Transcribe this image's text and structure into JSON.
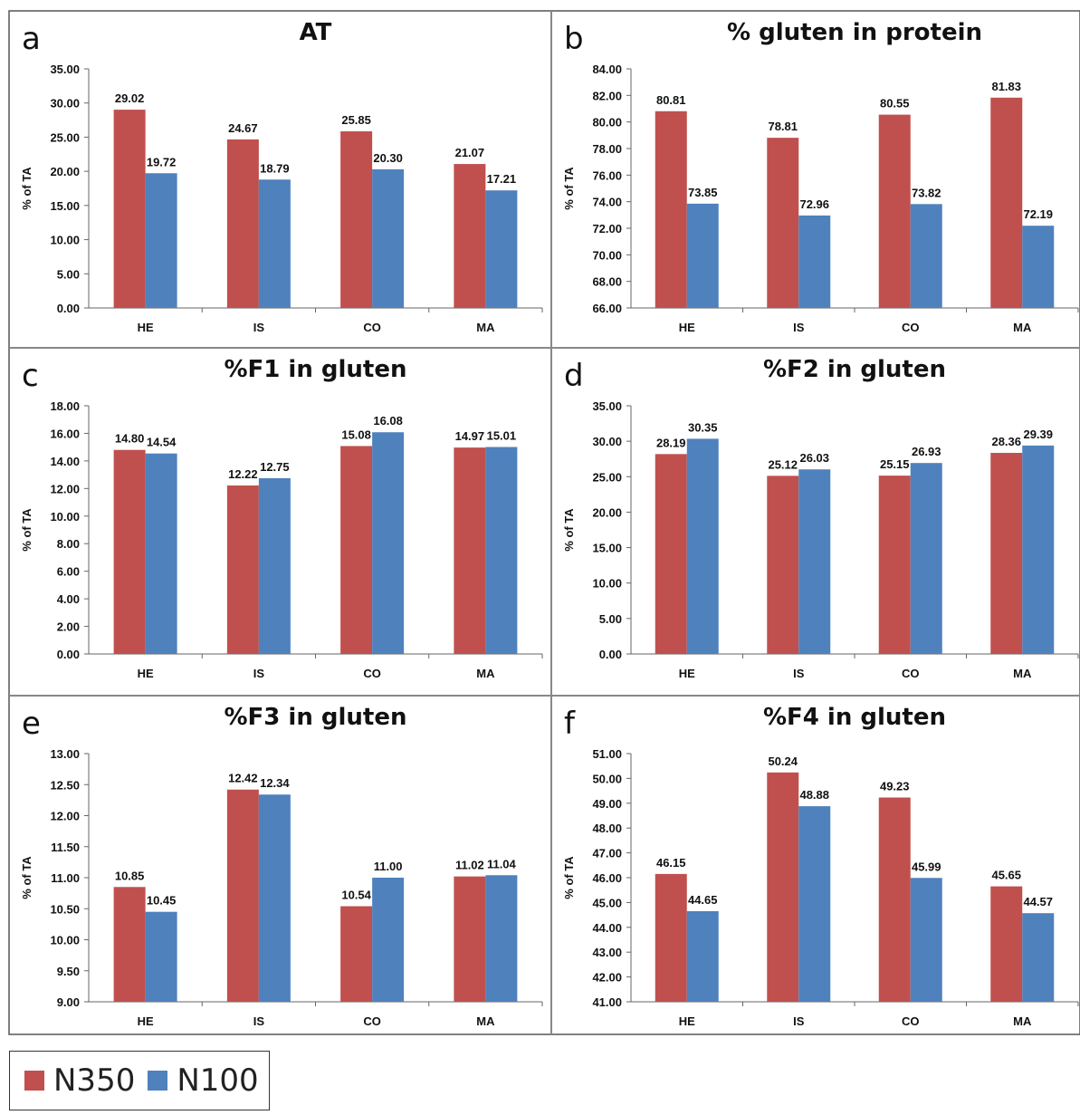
{
  "series_names": [
    "N350",
    "N100"
  ],
  "colors": {
    "N350": "#c0504d",
    "N100": "#4f81bd"
  },
  "chart_data": [
    {
      "type": "bar",
      "panel_letter": "a",
      "title": "AT",
      "ylabel": "% of TA",
      "categories": [
        "HE",
        "IS",
        "CO",
        "MA"
      ],
      "ylim": [
        0,
        35
      ],
      "ytick_step": 5,
      "series": [
        {
          "name": "N350",
          "values": [
            29.02,
            24.67,
            25.85,
            21.07
          ]
        },
        {
          "name": "N100",
          "values": [
            19.72,
            18.79,
            20.3,
            17.21
          ]
        }
      ]
    },
    {
      "type": "bar",
      "panel_letter": "b",
      "title": "% gluten in protein",
      "ylabel": "% of TA",
      "categories": [
        "HE",
        "IS",
        "CO",
        "MA"
      ],
      "ylim": [
        66,
        84
      ],
      "ytick_step": 2,
      "series": [
        {
          "name": "N350",
          "values": [
            80.81,
            78.81,
            80.55,
            81.83
          ]
        },
        {
          "name": "N100",
          "values": [
            73.85,
            72.96,
            73.82,
            72.19
          ]
        }
      ]
    },
    {
      "type": "bar",
      "panel_letter": "c",
      "title": "%F1 in gluten",
      "ylabel": "% of TA",
      "categories": [
        "HE",
        "IS",
        "CO",
        "MA"
      ],
      "ylim": [
        0,
        18
      ],
      "ytick_step": 2,
      "series": [
        {
          "name": "N350",
          "values": [
            14.8,
            12.22,
            15.08,
            14.97
          ]
        },
        {
          "name": "N100",
          "values": [
            14.54,
            12.75,
            16.08,
            15.01
          ]
        }
      ]
    },
    {
      "type": "bar",
      "panel_letter": "d",
      "title": "%F2 in gluten",
      "ylabel": "% of TA",
      "categories": [
        "HE",
        "IS",
        "CO",
        "MA"
      ],
      "ylim": [
        0,
        35
      ],
      "ytick_step": 5,
      "series": [
        {
          "name": "N350",
          "values": [
            28.19,
            25.12,
            25.15,
            28.36
          ]
        },
        {
          "name": "N100",
          "values": [
            30.35,
            26.03,
            26.93,
            29.39
          ]
        }
      ]
    },
    {
      "type": "bar",
      "panel_letter": "e",
      "title": "%F3 in gluten",
      "ylabel": "% of TA",
      "categories": [
        "HE",
        "IS",
        "CO",
        "MA"
      ],
      "ylim": [
        9,
        13
      ],
      "ytick_step": 0.5,
      "series": [
        {
          "name": "N350",
          "values": [
            10.85,
            12.42,
            10.54,
            11.02
          ]
        },
        {
          "name": "N100",
          "values": [
            10.45,
            12.34,
            11.0,
            11.04
          ]
        }
      ]
    },
    {
      "type": "bar",
      "panel_letter": "f",
      "title": "%F4 in gluten",
      "ylabel": "% of TA",
      "categories": [
        "HE",
        "IS",
        "CO",
        "MA"
      ],
      "ylim": [
        41,
        51
      ],
      "ytick_step": 1,
      "series": [
        {
          "name": "N350",
          "values": [
            46.15,
            50.24,
            49.23,
            45.65
          ]
        },
        {
          "name": "N100",
          "values": [
            44.65,
            48.88,
            45.99,
            44.57
          ]
        }
      ]
    }
  ]
}
